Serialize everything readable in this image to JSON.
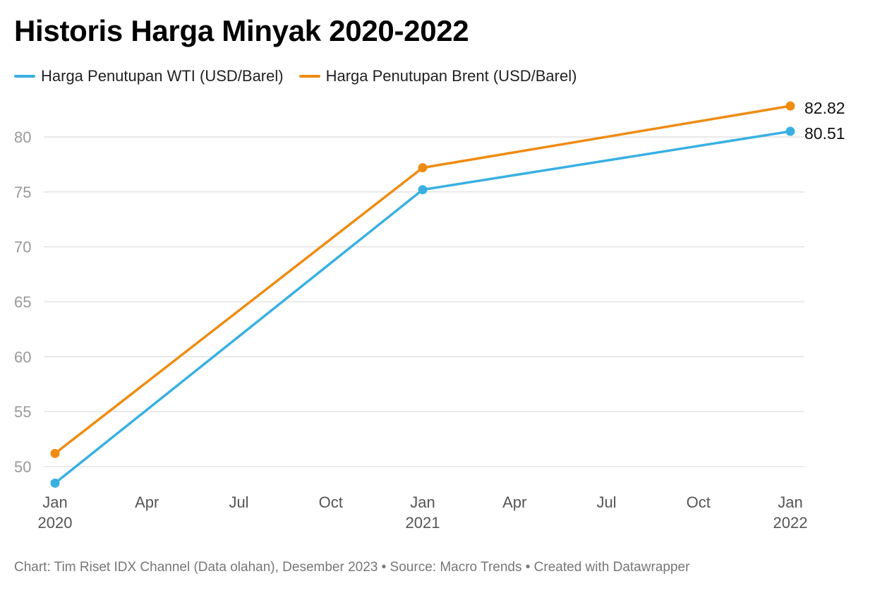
{
  "footer": {
    "credit": "Chart: Tim Riset IDX Channel (Data olahan), Desember 2023 • Source: Macro Trends • Created with Datawrapper"
  },
  "chart_data": {
    "type": "line",
    "title": "Historis Harga Minyak 2020-2022",
    "xlabel": "",
    "ylabel": "",
    "x": [
      "2020-01",
      "2021-01",
      "2022-01"
    ],
    "xlim": [
      "2020-01",
      "2022-01"
    ],
    "ylim": [
      48,
      83
    ],
    "yticks": [
      50,
      55,
      60,
      65,
      70,
      75,
      80
    ],
    "xticks": [
      {
        "month": "2020-01",
        "line1": "Jan",
        "line2": "2020"
      },
      {
        "month": "2020-04",
        "line1": "Apr",
        "line2": ""
      },
      {
        "month": "2020-07",
        "line1": "Jul",
        "line2": ""
      },
      {
        "month": "2020-10",
        "line1": "Oct",
        "line2": ""
      },
      {
        "month": "2021-01",
        "line1": "Jan",
        "line2": "2021"
      },
      {
        "month": "2021-04",
        "line1": "Apr",
        "line2": ""
      },
      {
        "month": "2021-07",
        "line1": "Jul",
        "line2": ""
      },
      {
        "month": "2021-10",
        "line1": "Oct",
        "line2": ""
      },
      {
        "month": "2022-01",
        "line1": "Jan",
        "line2": "2022"
      }
    ],
    "grid": true,
    "legend_position": "top-left",
    "series": [
      {
        "name": "Harga Penutupan WTI (USD/Barel)",
        "color": "#3ab0e2",
        "values": [
          48.5,
          75.2,
          80.51
        ],
        "end_label": "80.51"
      },
      {
        "name": "Harga Penutupan Brent (USD/Barel)",
        "color": "#ee8c12",
        "values": [
          51.2,
          77.2,
          82.82
        ],
        "end_label": "82.82"
      }
    ]
  }
}
